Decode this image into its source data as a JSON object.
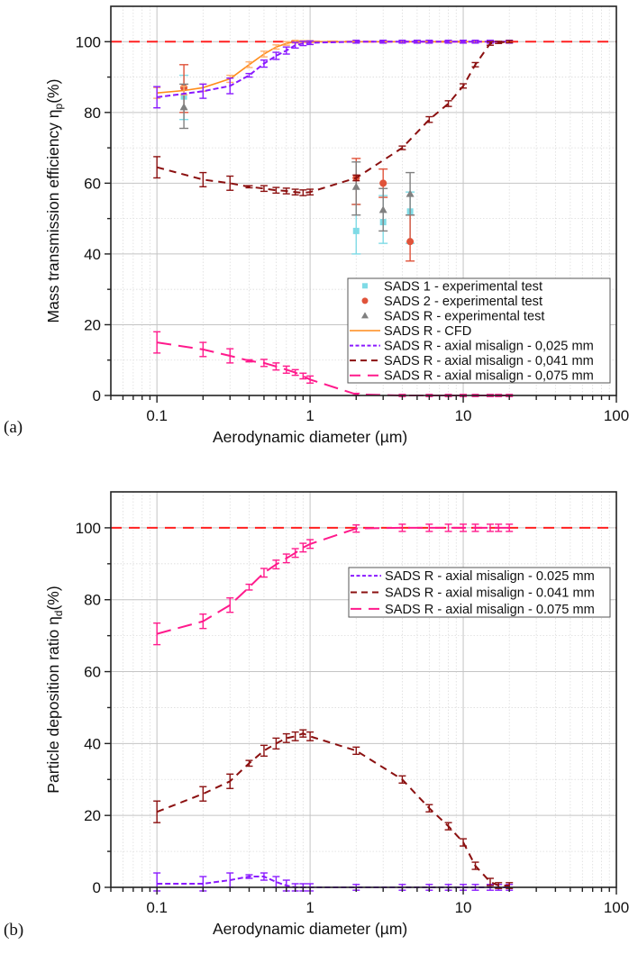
{
  "chart_data": [
    {
      "panel_label": "(a)",
      "type": "line",
      "xscale": "log",
      "xlabel": "Aerodynamic diameter (µm)",
      "ylabel": "Mass transmission efficiency η",
      "ylabel_sub": "p",
      "ylabel_suffix": "(%)",
      "xlim": [
        0.05,
        100
      ],
      "ylim": [
        0,
        110
      ],
      "xticks": [
        0.1,
        1,
        10,
        100
      ],
      "xtick_labels": [
        "0.1",
        "1",
        "10",
        "100"
      ],
      "yticks": [
        0,
        20,
        40,
        60,
        80,
        100
      ],
      "ytick_labels": [
        "0",
        "20",
        "40",
        "60",
        "80",
        "100"
      ],
      "grid": true,
      "legend_position": "lower-right",
      "reference_line": {
        "y": 100,
        "color": "#ff2020",
        "style": "dashed"
      },
      "series": [
        {
          "name": "SADS 1 - experimental test",
          "kind": "marker",
          "marker": "square",
          "color": "#7fdbe6",
          "x": [
            0.15,
            2,
            3,
            4.5
          ],
          "y": [
            84.5,
            46.5,
            49,
            52
          ],
          "err_low": [
            78,
            40,
            43,
            43
          ],
          "err_high": [
            90.5,
            54,
            56.5,
            57.5
          ]
        },
        {
          "name": "SADS 2 - experimental test",
          "kind": "marker",
          "marker": "circle",
          "color": "#e0533a",
          "x": [
            0.15,
            2,
            3,
            4.5
          ],
          "y": [
            87,
            61.5,
            60,
            43.5
          ],
          "err_low": [
            80,
            54,
            56,
            38
          ],
          "err_high": [
            93.5,
            67,
            64,
            51
          ]
        },
        {
          "name": "SADS R - experimental test",
          "kind": "marker",
          "marker": "triangle",
          "color": "#808080",
          "x": [
            0.15,
            2,
            3,
            4.5
          ],
          "y": [
            81.5,
            59,
            52.5,
            57
          ],
          "err_low": [
            75.5,
            51,
            46.5,
            51
          ],
          "err_high": [
            88,
            66,
            58.5,
            63
          ]
        },
        {
          "name": "SADS R - CFD",
          "kind": "line",
          "style": "solid",
          "color": "#ff8c1a",
          "x": [
            0.1,
            0.15,
            0.2,
            0.3,
            0.4,
            0.5,
            0.6,
            0.7,
            0.8,
            0.9,
            1,
            2,
            3,
            4,
            5,
            6,
            8,
            10,
            12,
            15,
            20
          ],
          "y": [
            85.5,
            86.2,
            87,
            89.5,
            93.5,
            96.5,
            98.5,
            99.5,
            100,
            100,
            100,
            100,
            100,
            100,
            100,
            100,
            100,
            100,
            100,
            100,
            100
          ],
          "err": [
            1.5,
            1.2,
            1,
            1,
            0.8,
            0.8,
            0.6,
            0.5,
            0.4,
            0.3,
            0.3,
            0.3,
            0.3,
            0.3,
            0.3,
            0.3,
            0.3,
            0.3,
            0.3,
            0.3,
            0.3
          ]
        },
        {
          "name": "SADS R - axial misalign - 0,025 mm",
          "kind": "line",
          "style": "dash-short",
          "color": "#8a1aff",
          "x": [
            0.1,
            0.2,
            0.3,
            0.4,
            0.5,
            0.6,
            0.7,
            0.8,
            0.9,
            1,
            2,
            3,
            4,
            5,
            6,
            8,
            10,
            12,
            15,
            20
          ],
          "y": [
            84.3,
            86,
            87.5,
            90.5,
            93.8,
            96,
            97.5,
            99,
            99.5,
            99.7,
            100,
            100,
            100,
            100,
            100,
            100,
            100,
            100,
            100,
            100
          ],
          "err": [
            3,
            2,
            2.2,
            0.5,
            1,
            1,
            1,
            0.8,
            0.6,
            0.5,
            0.4,
            0.4,
            0.4,
            0.4,
            0.4,
            0.4,
            0.4,
            0.4,
            0.4,
            0.4
          ]
        },
        {
          "name": "SADS R - axial misalign - 0,041 mm",
          "kind": "line",
          "style": "dash-medium",
          "color": "#8b1010",
          "x": [
            0.1,
            0.2,
            0.3,
            0.4,
            0.5,
            0.6,
            0.7,
            0.8,
            0.9,
            1,
            2,
            4,
            6,
            8,
            10,
            12,
            15,
            17,
            20
          ],
          "y": [
            64.5,
            61,
            60,
            59,
            58.5,
            58,
            57.8,
            57.5,
            57.3,
            57.5,
            61.5,
            70,
            78,
            82.5,
            87.5,
            93.5,
            99.5,
            99.8,
            100
          ],
          "err": [
            3,
            2,
            2,
            0.3,
            0.8,
            0.8,
            0.8,
            0.8,
            0.8,
            0.8,
            0.8,
            0.5,
            0.8,
            0.8,
            0.6,
            0.6,
            0.5,
            0.3,
            0.3
          ]
        },
        {
          "name": "SADS R - axial misalign - 0,075 mm",
          "kind": "line",
          "style": "dash-long",
          "color": "#ff1a8c",
          "x": [
            0.1,
            0.2,
            0.3,
            0.4,
            0.5,
            0.6,
            0.7,
            0.8,
            0.9,
            1,
            2,
            4,
            6,
            8,
            10,
            12,
            15,
            17,
            20
          ],
          "y": [
            15,
            13,
            11.2,
            9.8,
            9.2,
            8.2,
            7.3,
            6.5,
            5.5,
            4.5,
            0.3,
            0,
            0,
            0,
            0,
            0,
            0,
            0,
            0
          ],
          "err": [
            3,
            2,
            2,
            0.3,
            1,
            1,
            1,
            0.8,
            0.8,
            1,
            0.3,
            0.3,
            0.3,
            0.3,
            0.3,
            0.3,
            0.3,
            0.3,
            0.3
          ]
        }
      ]
    },
    {
      "panel_label": "(b)",
      "type": "line",
      "xscale": "log",
      "xlabel": "Aerodynamic diameter (µm)",
      "ylabel": "Particle deposition ratio η",
      "ylabel_sub": "d",
      "ylabel_suffix": "(%)",
      "xlim": [
        0.05,
        100
      ],
      "ylim": [
        0,
        110
      ],
      "xticks": [
        0.1,
        1,
        10,
        100
      ],
      "xtick_labels": [
        "0.1",
        "1",
        "10",
        "100"
      ],
      "yticks": [
        0,
        20,
        40,
        60,
        80,
        100
      ],
      "ytick_labels": [
        "0",
        "20",
        "40",
        "60",
        "80",
        "100"
      ],
      "grid": true,
      "legend_position": "right",
      "reference_line": {
        "y": 100,
        "color": "#ff2020",
        "style": "dashed"
      },
      "series": [
        {
          "name": "SADS R - axial misalign - 0.025 mm",
          "kind": "line",
          "style": "dash-short",
          "color": "#8a1aff",
          "x": [
            0.1,
            0.2,
            0.3,
            0.4,
            0.5,
            0.6,
            0.7,
            0.8,
            0.9,
            1,
            2,
            4,
            6,
            8,
            10,
            12,
            15,
            17,
            20
          ],
          "y": [
            1,
            1,
            2,
            3,
            3,
            1.5,
            0.5,
            0,
            0,
            0,
            0,
            0,
            0,
            0,
            0,
            0,
            0,
            0,
            0
          ],
          "err": [
            3,
            2,
            2,
            0.5,
            1,
            1.5,
            1.5,
            1,
            1,
            1,
            0.8,
            0.8,
            0.8,
            0.8,
            0.8,
            0.8,
            0.8,
            0.8,
            0.8
          ]
        },
        {
          "name": "SADS R - axial misalign - 0.041 mm",
          "kind": "line",
          "style": "dash-medium",
          "color": "#8b1010",
          "x": [
            0.1,
            0.2,
            0.3,
            0.4,
            0.5,
            0.6,
            0.7,
            0.8,
            0.9,
            1,
            2,
            4,
            6,
            8,
            10,
            12,
            15,
            17,
            20
          ],
          "y": [
            21,
            26,
            29.5,
            34.5,
            38,
            40,
            41.5,
            42,
            42.8,
            42,
            38,
            30,
            22,
            17,
            12.5,
            6,
            1.5,
            0.5,
            0.5
          ],
          "err": [
            3,
            2,
            2,
            0.8,
            1.5,
            1.5,
            1.2,
            1.2,
            1,
            1.2,
            1,
            1,
            1,
            1,
            1,
            1,
            1,
            0.8,
            0.8
          ]
        },
        {
          "name": "SADS R - axial misalign - 0.075 mm",
          "kind": "line",
          "style": "dash-long",
          "color": "#ff1a8c",
          "x": [
            0.1,
            0.2,
            0.3,
            0.4,
            0.5,
            0.6,
            0.7,
            0.8,
            0.9,
            1,
            2,
            4,
            6,
            8,
            10,
            12,
            15,
            17,
            20
          ],
          "y": [
            70.5,
            74,
            78.5,
            83.5,
            87.5,
            89.8,
            91.5,
            93,
            94.5,
            95.5,
            99.8,
            100,
            100,
            100,
            100,
            100,
            100,
            100,
            100
          ],
          "err": [
            3,
            2,
            2,
            0.8,
            1.2,
            1.2,
            1.2,
            1.2,
            1.2,
            1.2,
            1,
            1,
            1,
            1,
            1,
            1,
            1,
            1,
            1
          ]
        }
      ]
    }
  ]
}
